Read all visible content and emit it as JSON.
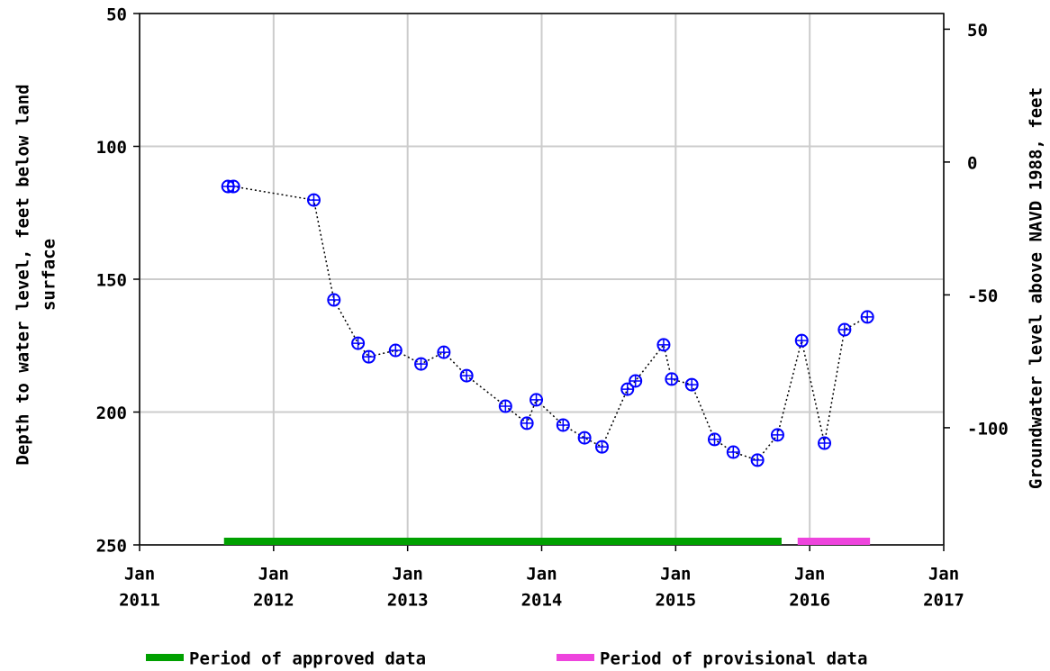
{
  "chart_data": {
    "type": "line",
    "y_label": [
      "Depth to water level, feet below land",
      "surface"
    ],
    "y2_label": "Groundwater level above NAVD 1988, feet",
    "xlim": [
      2011,
      2017
    ],
    "xticks": [
      {
        "value": 2011,
        "label": [
          "Jan",
          "2011"
        ]
      },
      {
        "value": 2012,
        "label": [
          "Jan",
          "2012"
        ]
      },
      {
        "value": 2013,
        "label": [
          "Jan",
          "2013"
        ]
      },
      {
        "value": 2014,
        "label": [
          "Jan",
          "2014"
        ]
      },
      {
        "value": 2015,
        "label": [
          "Jan",
          "2015"
        ]
      },
      {
        "value": 2016,
        "label": [
          "Jan",
          "2016"
        ]
      },
      {
        "value": 2017,
        "label": [
          "Jan",
          "2017"
        ]
      }
    ],
    "ylim": [
      50,
      250
    ],
    "inverted": true,
    "yticks": [
      50,
      100,
      150,
      200,
      250
    ],
    "y2lim": [
      55.9,
      -144.1
    ],
    "y2ticks": [
      50,
      0,
      -50,
      -100
    ],
    "grid": true,
    "series": [
      {
        "color": "#0000ff",
        "x": [
          2011.66,
          2011.7,
          2012.3,
          2012.45,
          2012.63,
          2012.71,
          2012.91,
          2013.1,
          2013.27,
          2013.44,
          2013.73,
          2013.89,
          2013.96,
          2014.16,
          2014.32,
          2014.45,
          2014.64,
          2014.7,
          2014.91,
          2014.97,
          2015.12,
          2015.29,
          2015.43,
          2015.61,
          2015.76,
          2015.94,
          2016.11,
          2016.26,
          2016.43
        ],
        "values": [
          115.1,
          115.1,
          120.2,
          157.8,
          174.1,
          179.2,
          176.8,
          181.9,
          177.5,
          186.3,
          197.8,
          204.2,
          195.4,
          204.9,
          209.7,
          213.1,
          191.4,
          188.3,
          174.7,
          187.6,
          189.7,
          210.3,
          215.1,
          218.1,
          208.6,
          173.1,
          211.7,
          169.0,
          164.2
        ]
      }
    ],
    "periods": [
      {
        "name": "Period of approved data",
        "color": "#00a000",
        "start": 2011.63,
        "end": 2015.79
      },
      {
        "name": "Period of provisional data",
        "color": "#ee44dd",
        "start": 2015.91,
        "end": 2016.45
      }
    ]
  }
}
